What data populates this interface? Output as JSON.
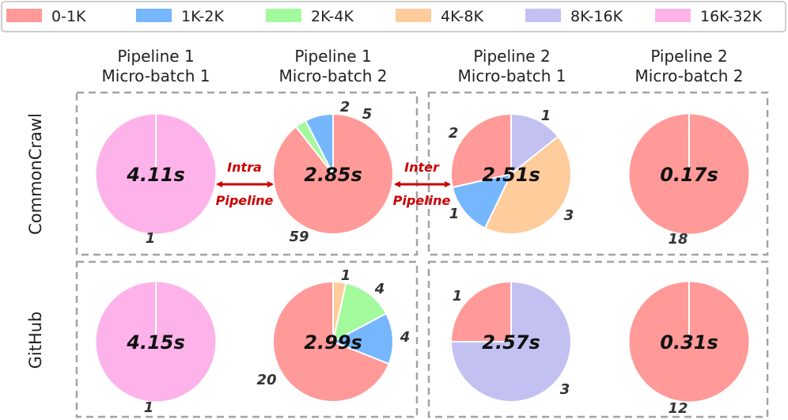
{
  "chart_data": {
    "type": "pie",
    "legend": [
      {
        "label": "0-1K",
        "color": "#ff9a98"
      },
      {
        "label": "1K-2K",
        "color": "#75b6fd"
      },
      {
        "label": "2K-4K",
        "color": "#a3fa9d"
      },
      {
        "label": "4K-8K",
        "color": "#ffcc9c"
      },
      {
        "label": "8K-16K",
        "color": "#c3c1f2"
      },
      {
        "label": "16K-32K",
        "color": "#fdb3ea"
      }
    ],
    "columns": [
      {
        "line1": "Pipeline 1",
        "line2": "Micro-batch 1"
      },
      {
        "line1": "Pipeline 1",
        "line2": "Micro-batch 2"
      },
      {
        "line1": "Pipeline 2",
        "line2": "Micro-batch 1"
      },
      {
        "line1": "Pipeline 2",
        "line2": "Micro-batch 2"
      }
    ],
    "rows": [
      {
        "label": "CommonCrawl",
        "pies": [
          {
            "time": "4.11s",
            "slices": [
              {
                "bin": "16K-32K",
                "count": 1
              }
            ]
          },
          {
            "time": "2.85s",
            "slices": [
              {
                "bin": "0-1K",
                "count": 59
              },
              {
                "bin": "2K-4K",
                "count": 2
              },
              {
                "bin": "1K-2K",
                "count": 5
              }
            ]
          },
          {
            "time": "2.51s",
            "slices": [
              {
                "bin": "8K-16K",
                "count": 1
              },
              {
                "bin": "4K-8K",
                "count": 3
              },
              {
                "bin": "1K-2K",
                "count": 1
              },
              {
                "bin": "0-1K",
                "count": 2
              }
            ]
          },
          {
            "time": "0.17s",
            "slices": [
              {
                "bin": "0-1K",
                "count": 18
              }
            ]
          }
        ]
      },
      {
        "label": "GitHub",
        "pies": [
          {
            "time": "4.15s",
            "slices": [
              {
                "bin": "16K-32K",
                "count": 1
              }
            ]
          },
          {
            "time": "2.99s",
            "slices": [
              {
                "bin": "4K-8K",
                "count": 1
              },
              {
                "bin": "2K-4K",
                "count": 4
              },
              {
                "bin": "1K-2K",
                "count": 4
              },
              {
                "bin": "0-1K",
                "count": 20
              }
            ]
          },
          {
            "time": "2.57s",
            "slices": [
              {
                "bin": "8K-16K",
                "count": 3
              },
              {
                "bin": "0-1K",
                "count": 1
              }
            ]
          },
          {
            "time": "0.31s",
            "slices": [
              {
                "bin": "0-1K",
                "count": 12
              }
            ]
          }
        ]
      }
    ],
    "annotations": {
      "intra": {
        "line1": "Intra",
        "line2": "Pipeline"
      },
      "inter": {
        "line1": "Inter",
        "line2": "Pipeline"
      }
    }
  }
}
